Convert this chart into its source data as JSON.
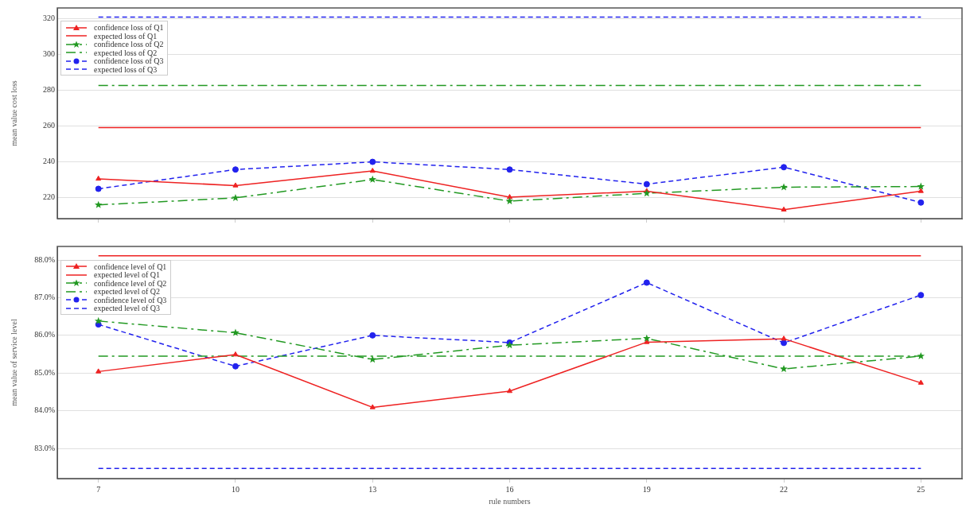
{
  "chart_data": [
    {
      "type": "line",
      "ylabel": "mean value cost loss",
      "xlim": [
        6.1,
        25.9
      ],
      "xticks": [
        7,
        10,
        13,
        16,
        19,
        22,
        25
      ],
      "ylim": [
        208,
        326
      ],
      "yticks": [
        220,
        240,
        260,
        280,
        300,
        320
      ],
      "grid": "y",
      "legend": "top left",
      "tick_labels": "y",
      "series": [
        {
          "name": "confidence loss of Q1",
          "color": "#ee2222",
          "marker": "triangle",
          "line_style": "solid",
          "x": [
            7,
            10,
            13,
            16,
            19,
            22,
            25
          ],
          "values": [
            230.3,
            226.5,
            234.7,
            220,
            223.4,
            213,
            223.4
          ]
        },
        {
          "name": "expected loss of Q1",
          "color": "#ee2222",
          "marker": "none",
          "line_style": "solid",
          "x": [
            7,
            25
          ],
          "values": [
            259,
            259
          ]
        },
        {
          "name": "confidence loss of Q2",
          "color": "#229922",
          "marker": "star",
          "line_style": "dashdot",
          "x": [
            7,
            10,
            13,
            16,
            19,
            22,
            25
          ],
          "values": [
            215.7,
            219.6,
            229.9,
            217.8,
            222.2,
            225.6,
            226
          ]
        },
        {
          "name": "expected loss of Q2",
          "color": "#229922",
          "marker": "none",
          "line_style": "dashdot",
          "x": [
            7,
            25
          ],
          "values": [
            282.6,
            282.6
          ]
        },
        {
          "name": "confidence loss of Q3",
          "color": "#2222ee",
          "marker": "circle",
          "line_style": "dashed",
          "x": [
            7,
            10,
            13,
            16,
            19,
            22,
            25
          ],
          "values": [
            224.7,
            235.5,
            239.8,
            235.5,
            227.3,
            236.8,
            217
          ]
        },
        {
          "name": "expected loss of Q3",
          "color": "#2222ee",
          "marker": "none",
          "line_style": "dashed",
          "x": [
            7,
            25
          ],
          "values": [
            320.9,
            320.9
          ]
        }
      ]
    },
    {
      "type": "line",
      "xlabel": "rule numbers",
      "ylabel": "mean value of service level",
      "xlim": [
        6.1,
        25.9
      ],
      "xticks": [
        7,
        10,
        13,
        16,
        19,
        22,
        25
      ],
      "ylim": [
        82.2,
        88.36
      ],
      "yticks": [
        {
          "value": 83,
          "label": "83.0%"
        },
        {
          "value": 84,
          "label": "84.0%"
        },
        {
          "value": 85,
          "label": "85.0%"
        },
        {
          "value": 86,
          "label": "86.0%"
        },
        {
          "value": 87,
          "label": "87.0%"
        },
        {
          "value": 88,
          "label": "88.0%"
        }
      ],
      "grid": "y",
      "legend": "top left",
      "series": [
        {
          "name": "confidence level of Q1",
          "color": "#ee2222",
          "marker": "triangle",
          "line_style": "solid",
          "x": [
            7,
            10,
            13,
            16,
            19,
            22,
            25
          ],
          "values": [
            85.04,
            85.49,
            84.09,
            84.52,
            85.82,
            85.91,
            84.74
          ]
        },
        {
          "name": "expected level of Q1",
          "color": "#ee2222",
          "marker": "none",
          "line_style": "solid",
          "x": [
            7,
            25
          ],
          "values": [
            88.11,
            88.11
          ]
        },
        {
          "name": "confidence level of Q2",
          "color": "#229922",
          "marker": "star",
          "line_style": "dashdot",
          "x": [
            7,
            10,
            13,
            16,
            19,
            22,
            25
          ],
          "values": [
            86.38,
            86.07,
            85.36,
            85.74,
            85.92,
            85.11,
            85.45
          ]
        },
        {
          "name": "expected level of Q2",
          "color": "#229922",
          "marker": "none",
          "line_style": "dashdot",
          "x": [
            7,
            25
          ],
          "values": [
            85.45,
            85.45
          ]
        },
        {
          "name": "confidence level of Q3",
          "color": "#2222ee",
          "marker": "circle",
          "line_style": "dashed",
          "x": [
            7,
            10,
            13,
            16,
            19,
            22,
            25
          ],
          "values": [
            86.29,
            85.18,
            86,
            85.81,
            87.4,
            85.8,
            87.07
          ]
        },
        {
          "name": "expected level of Q3",
          "color": "#2222ee",
          "marker": "none",
          "line_style": "dashed",
          "x": [
            7,
            25
          ],
          "values": [
            82.47,
            82.47
          ]
        }
      ]
    }
  ]
}
